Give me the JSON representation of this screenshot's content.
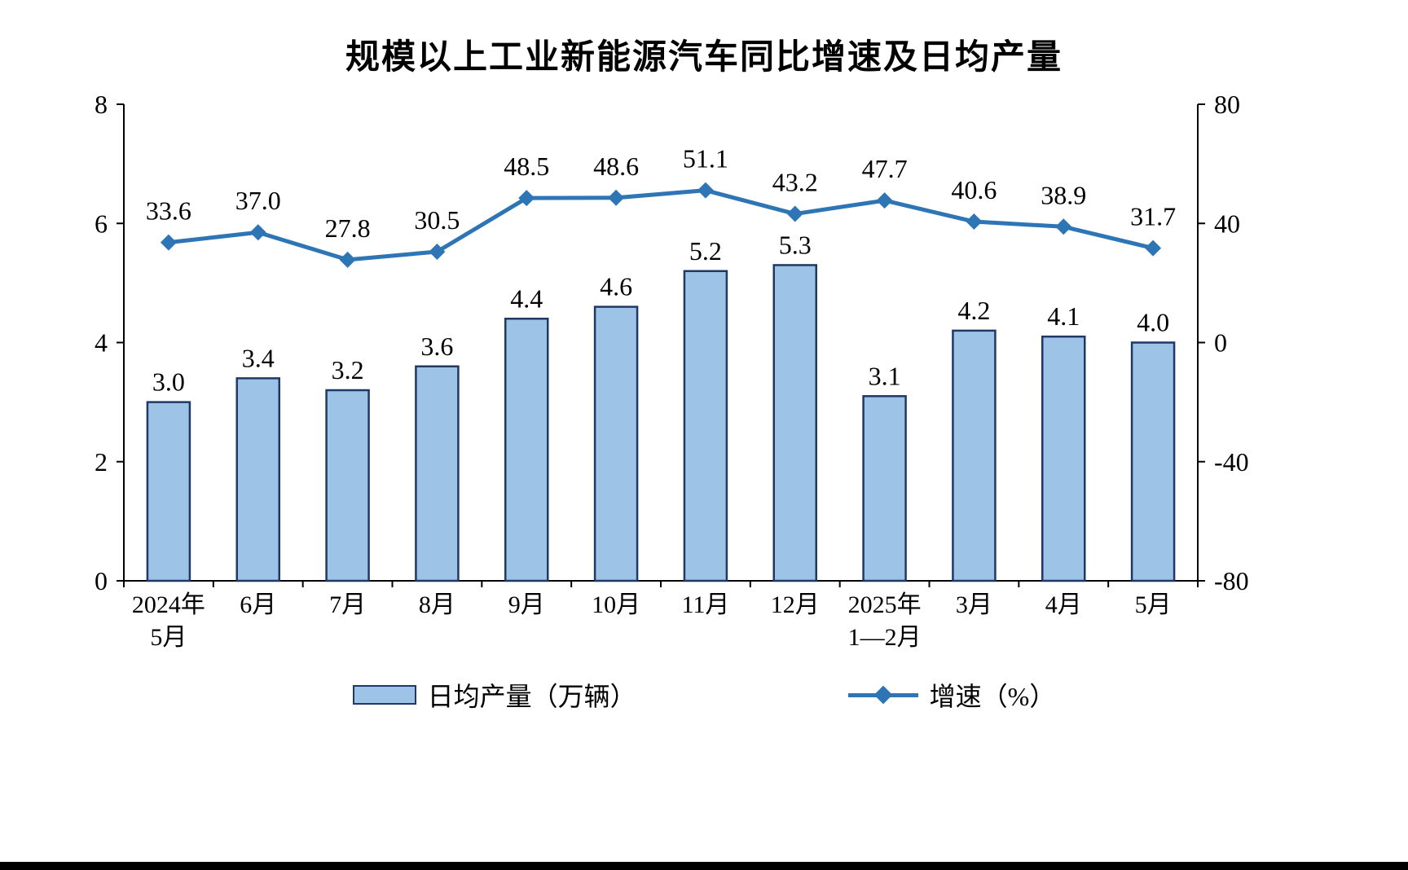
{
  "title": "规模以上工业新能源汽车同比增速及日均产量",
  "chart_data": {
    "type": "bar",
    "subtype": "combo-bar-line",
    "categories": [
      "2024年\n5月",
      "6月",
      "7月",
      "8月",
      "9月",
      "10月",
      "11月",
      "12月",
      "2025年\n1—2月",
      "3月",
      "4月",
      "5月"
    ],
    "series": [
      {
        "name": "日均产量（万辆）",
        "type": "bar",
        "axis": "left",
        "values": [
          3.0,
          3.4,
          3.2,
          3.6,
          4.4,
          4.6,
          5.2,
          5.3,
          3.1,
          4.2,
          4.1,
          4.0
        ],
        "fill": "#9DC3E6",
        "border": "#1F3864"
      },
      {
        "name": "增速（%）",
        "type": "line",
        "axis": "right",
        "values": [
          33.6,
          37.0,
          27.8,
          30.5,
          48.5,
          48.6,
          51.1,
          43.2,
          47.7,
          40.6,
          38.9,
          31.7
        ],
        "color": "#2E75B6"
      }
    ],
    "left_axis": {
      "min": 0,
      "max": 8,
      "ticks": [
        0,
        2,
        4,
        6,
        8
      ]
    },
    "right_axis": {
      "min": -80,
      "max": 80,
      "ticks": [
        -80,
        -40,
        0,
        40,
        80
      ]
    },
    "grid": false,
    "legend_position": "bottom",
    "colors": {
      "bar_fill": "#9DC3E6",
      "bar_border": "#1F3864",
      "line": "#2E75B6",
      "text": "#000000"
    }
  }
}
